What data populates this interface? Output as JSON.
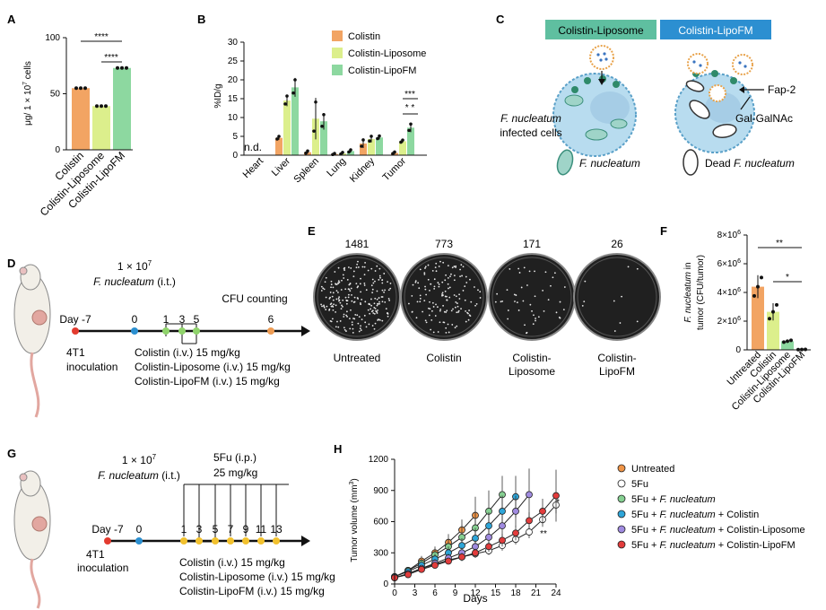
{
  "panel_letters": {
    "A": "A",
    "B": "B",
    "C": "C",
    "D": "D",
    "E": "E",
    "F": "F",
    "G": "G",
    "H": "H"
  },
  "colors": {
    "colistin": "#f2a463",
    "colistin_liposome": "#dcef8c",
    "colistin_lipofm": "#8dd8a0",
    "untreated": "#ef9447",
    "fu_only": "#ffffff",
    "fu_fn": "#86d092",
    "fu_fn_col": "#2ea5d8",
    "fu_fn_lipo": "#a08be0",
    "fu_fn_lipofm": "#e23c3c",
    "header_liposome": "#5fbfa0",
    "header_lipofm": "#2c8fd1",
    "cell": "#b8dcef"
  },
  "panelA": {
    "ylabel_pre": "μg/ 1 × 10",
    "ylabel_sup": "7",
    "ylabel_post": " cells",
    "yticks": [
      "0",
      "50",
      "100"
    ],
    "sig1": "****",
    "sig2": "****",
    "xcats": [
      "Colistin",
      "Colistin-Liposome",
      "Colistin-LipoFM"
    ]
  },
  "panelB": {
    "ylabel": "%ID/g",
    "yticks": [
      "0",
      "5",
      "10",
      "15",
      "20",
      "25",
      "30"
    ],
    "nd": "n.d.",
    "sig_top": "***",
    "sig_bottom": "* *",
    "xcats": [
      "Heart",
      "Liver",
      "Spleen",
      "Lung",
      "Kidney",
      "Tumor"
    ],
    "legend": [
      "Colistin",
      "Colistin-Liposome",
      "Colistin-LipoFM"
    ]
  },
  "panelC": {
    "header_left": "Colistin-Liposome",
    "header_right": "Colistin-LipoFM",
    "infected_species": "F. nucleatum",
    "infected_text": "infected cells",
    "fap2": "Fap-2",
    "galgalnac": "Gal-GalNAc",
    "legend_fn": "F. nucleatum",
    "legend_dead_pre": "Dead ",
    "legend_dead_species": "F. nucleatum"
  },
  "panelD": {
    "dose_main": "1 × 10",
    "dose_sup": "7",
    "species": "F. nucleatum",
    "route": " (i.t.)",
    "cfu": "CFU counting",
    "days": [
      "Day -7",
      "0",
      "1",
      "3",
      "5",
      "6"
    ],
    "inoc1": "4T1",
    "inoc2": "inoculation",
    "tx": [
      "Colistin (i.v.) 15 mg/kg",
      "Colistin-Liposome (i.v.) 15 mg/kg",
      "Colistin-LipoFM (i.v.) 15 mg/kg"
    ]
  },
  "panelE": {
    "counts": [
      "1481",
      "773",
      "171",
      "26"
    ],
    "labels": [
      [
        "Untreated"
      ],
      [
        "Colistin"
      ],
      [
        "Colistin-",
        "Liposome"
      ],
      [
        "Colistin-",
        "LipoFM"
      ]
    ]
  },
  "panelF": {
    "ylabel_species": "F. nucleatum",
    "ylabel_suffix": " in",
    "ylabel_line2": "tumor (CFU/tumor)",
    "yticks_base": [
      "0",
      "2×10",
      "4×10",
      "6×10",
      "8×10"
    ],
    "ytick_sup": "6",
    "sig1": "**",
    "sig2": "*",
    "xcats": [
      "Untreated",
      "Colistin",
      "Colistin-Liposome",
      "Colistin-LipoFM"
    ]
  },
  "panelG": {
    "dose_main": "1 × 10",
    "dose_sup": "7",
    "species": "F. nucleatum",
    "route": " (i.t.)",
    "fu1": "5Fu (i.p.)",
    "fu2": "25 mg/kg",
    "days": [
      "Day -7",
      "0",
      "1",
      "3",
      "5",
      "7",
      "9",
      "11",
      "13"
    ],
    "inoc1": "4T1",
    "inoc2": "inoculation",
    "tx": [
      "Colistin (i.v.) 15 mg/kg",
      "Colistin-Liposome (i.v.) 15 mg/kg",
      "Colistin-LipoFM (i.v.) 15 mg/kg"
    ]
  },
  "panelH": {
    "ylabel_pre": "Tumor volume (mm",
    "ylabel_sup": "3",
    "ylabel_post": ")",
    "yticks": [
      "0",
      "300",
      "600",
      "900",
      "1200"
    ],
    "xticks": [
      "0",
      "3",
      "6",
      "9",
      "12",
      "15",
      "18",
      "21",
      "24"
    ],
    "xlabel": "Days",
    "sig1": "**",
    "sig2": "*",
    "legend": [
      {
        "pre": "Untreated",
        "it": "",
        "post": ""
      },
      {
        "pre": "5Fu",
        "it": "",
        "post": ""
      },
      {
        "pre": "5Fu + ",
        "it": "F. nucleatum",
        "post": ""
      },
      {
        "pre": "5Fu + ",
        "it": "F. nucleatum",
        "post": " + Colistin"
      },
      {
        "pre": "5Fu + ",
        "it": "F. nucleatum",
        "post": " + Colistin-Liposome"
      },
      {
        "pre": "5Fu + ",
        "it": "F. nucleatum",
        "post": " + Colistin-LipoFM"
      }
    ]
  },
  "chart_data": [
    {
      "panel": "A",
      "type": "bar",
      "categories": [
        "Colistin",
        "Colistin-Liposome",
        "Colistin-LipoFM"
      ],
      "values": [
        55,
        39,
        73
      ],
      "ylabel": "μg/ 1 × 10^7 cells",
      "ylim": [
        0,
        100
      ]
    },
    {
      "panel": "B",
      "type": "bar",
      "categories": [
        "Heart",
        "Liver",
        "Spleen",
        "Lung",
        "Kidney",
        "Tumor"
      ],
      "series": [
        {
          "name": "Colistin",
          "values": [
            0,
            4.6,
            0.8,
            0.3,
            3.1,
            0.6
          ],
          "errors": [
            0,
            0.5,
            0.4,
            0.2,
            1.2,
            0.3
          ]
        },
        {
          "name": "Colistin-Liposome",
          "values": [
            0,
            14.5,
            9.7,
            0.5,
            4.3,
            3.7
          ],
          "errors": [
            0,
            1.5,
            5.5,
            0.3,
            0.9,
            0.4
          ]
        },
        {
          "name": "Colistin-LipoFM",
          "values": [
            0,
            18.0,
            9.0,
            1.1,
            4.7,
            7.3
          ],
          "errors": [
            0,
            2.5,
            2.2,
            0.4,
            0.5,
            1.2
          ]
        }
      ],
      "ylabel": "%ID/g",
      "ylim": [
        0,
        30
      ]
    },
    {
      "panel": "F",
      "type": "bar",
      "categories": [
        "Untreated",
        "Colistin",
        "Colistin-Liposome",
        "Colistin-LipoFM"
      ],
      "values": [
        4400000,
        2650000,
        600000,
        26000
      ],
      "errors": [
        800000,
        600000,
        80000,
        10000
      ],
      "ylabel": "F. nucleatum in tumor (CFU/tumor)",
      "ylim": [
        0,
        8000000
      ]
    },
    {
      "panel": "H",
      "type": "line",
      "x": [
        0,
        2,
        4,
        6,
        8,
        10,
        12,
        14,
        16,
        18,
        20,
        22,
        24
      ],
      "series": [
        {
          "name": "Untreated",
          "x": [
            0,
            2,
            4,
            6,
            8,
            10,
            12
          ],
          "values": [
            70,
            130,
            220,
            300,
            400,
            520,
            660
          ],
          "errors": [
            30,
            30,
            50,
            60,
            80,
            100,
            180
          ]
        },
        {
          "name": "5Fu",
          "x": [
            0,
            2,
            4,
            6,
            8,
            10,
            12,
            14,
            16,
            18,
            20,
            22,
            24
          ],
          "values": [
            60,
            100,
            150,
            190,
            230,
            260,
            290,
            320,
            370,
            430,
            500,
            620,
            760
          ],
          "errors": [
            20,
            20,
            20,
            30,
            30,
            30,
            40,
            40,
            50,
            50,
            60,
            70,
            80
          ]
        },
        {
          "name": "5Fu + F. nucleatum",
          "x": [
            0,
            2,
            4,
            6,
            8,
            10,
            12,
            14,
            16
          ],
          "values": [
            70,
            130,
            200,
            280,
            360,
            450,
            540,
            700,
            860
          ],
          "errors": [
            30,
            30,
            40,
            60,
            80,
            120,
            160,
            200,
            180
          ]
        },
        {
          "name": "5Fu + F. nucleatum + Colistin",
          "x": [
            0,
            2,
            4,
            6,
            8,
            10,
            12,
            14,
            16,
            18
          ],
          "values": [
            70,
            120,
            180,
            240,
            300,
            370,
            440,
            560,
            700,
            840
          ],
          "errors": [
            30,
            30,
            40,
            50,
            60,
            70,
            100,
            130,
            150,
            200
          ]
        },
        {
          "name": "5Fu + F. nucleatum + Colistin-Liposome",
          "x": [
            0,
            2,
            4,
            6,
            8,
            10,
            12,
            14,
            16,
            18,
            20
          ],
          "values": [
            60,
            100,
            150,
            200,
            250,
            300,
            360,
            450,
            560,
            700,
            860
          ],
          "errors": [
            20,
            20,
            30,
            40,
            40,
            50,
            60,
            80,
            100,
            150,
            250
          ]
        },
        {
          "name": "5Fu + F. nucleatum + Colistin-LipoFM",
          "x": [
            0,
            2,
            4,
            6,
            8,
            10,
            12,
            14,
            16,
            18,
            20,
            22,
            24
          ],
          "values": [
            60,
            90,
            140,
            180,
            220,
            260,
            300,
            360,
            420,
            490,
            610,
            700,
            850
          ],
          "errors": [
            20,
            20,
            20,
            30,
            30,
            40,
            40,
            50,
            60,
            70,
            80,
            120,
            250
          ]
        }
      ],
      "xlabel": "Days",
      "ylabel": "Tumor volume (mm^3)",
      "xlim": [
        0,
        24
      ],
      "ylim": [
        0,
        1200
      ]
    }
  ]
}
